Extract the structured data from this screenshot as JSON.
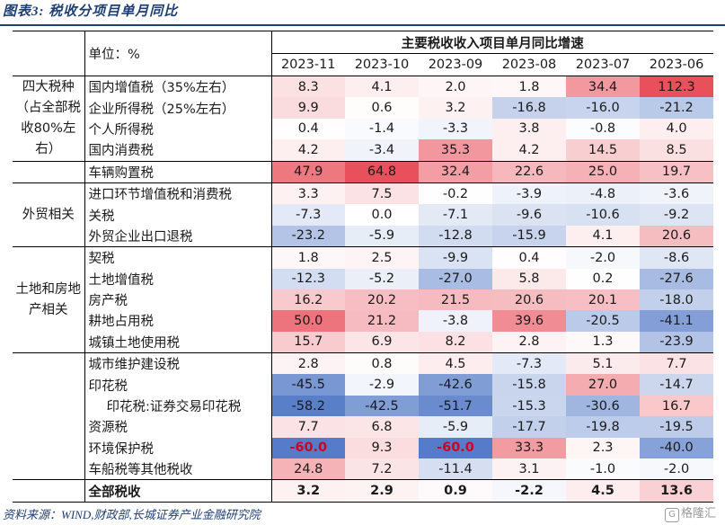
{
  "figure_title": "图表3:  税收分项目单月同比",
  "table": {
    "unit_label": "单位：%",
    "header": "主要税收收入项目单月同比增速",
    "months": [
      "2023-11",
      "2023-10",
      "2023-09",
      "2023-08",
      "2023-07",
      "2023-06"
    ],
    "groups": [
      {
        "name": "四大税种（占全部税收80%左右）",
        "rows": [
          {
            "item": "国内增值税（35%左右）",
            "values": [
              8.3,
              4.1,
              2.0,
              1.8,
              34.4,
              112.3
            ]
          },
          {
            "item": "企业所得税（25%左右）",
            "values": [
              9.9,
              0.6,
              3.2,
              -16.8,
              -16.0,
              -21.2
            ]
          },
          {
            "item": "个人所得税",
            "values": [
              0.4,
              -1.4,
              -3.3,
              3.8,
              -0.8,
              4.0
            ]
          },
          {
            "item": "国内消费税",
            "values": [
              4.2,
              -3.4,
              35.3,
              4.2,
              14.5,
              8.5
            ]
          }
        ]
      },
      {
        "name": "",
        "rows": [
          {
            "item": "车辆购置税",
            "values": [
              47.9,
              64.8,
              32.4,
              22.6,
              25.0,
              19.7
            ]
          }
        ]
      },
      {
        "name": "外贸相关",
        "rows": [
          {
            "item": "进口环节增值税和消费税",
            "values": [
              3.3,
              7.5,
              -0.2,
              -3.9,
              -4.8,
              -3.6
            ]
          },
          {
            "item": "关税",
            "values": [
              -7.3,
              0.0,
              -7.1,
              -9.6,
              -10.6,
              -9.2
            ]
          },
          {
            "item": "外贸企业出口退税",
            "values": [
              -23.2,
              -5.9,
              -12.8,
              -15.9,
              4.1,
              20.6
            ]
          }
        ]
      },
      {
        "name": "土地和房地产相关",
        "rows": [
          {
            "item": "契税",
            "values": [
              1.8,
              2.5,
              -9.9,
              0.4,
              -2.0,
              -8.6
            ]
          },
          {
            "item": "土地增值税",
            "values": [
              -12.3,
              -5.2,
              -27.0,
              5.8,
              0.2,
              -27.6
            ]
          },
          {
            "item": "房产税",
            "values": [
              16.2,
              20.2,
              21.5,
              20.6,
              20.1,
              -18.0
            ]
          },
          {
            "item": "耕地占用税",
            "values": [
              50.0,
              21.2,
              -3.8,
              39.6,
              -20.5,
              -41.1
            ]
          },
          {
            "item": "城镇土地使用税",
            "values": [
              15.7,
              6.9,
              8.2,
              2.8,
              1.3,
              -23.9
            ]
          }
        ]
      },
      {
        "name": "",
        "rows": [
          {
            "item": "城市维护建设税",
            "values": [
              2.8,
              0.8,
              4.5,
              -7.3,
              5.1,
              7.7
            ]
          },
          {
            "item": "印花税",
            "values": [
              -45.5,
              -2.9,
              -42.6,
              -15.8,
              27.0,
              -14.7
            ]
          },
          {
            "item": "印花税:证券交易印花税",
            "values": [
              -58.2,
              -42.5,
              -51.7,
              -15.3,
              -30.6,
              16.7
            ],
            "indent": true
          },
          {
            "item": "资源税",
            "values": [
              7.7,
              6.8,
              -5.9,
              -17.7,
              -19.8,
              -19.5
            ]
          },
          {
            "item": "环境保护税",
            "values": [
              -60.0,
              9.3,
              -60.0,
              33.3,
              2.3,
              -40.0
            ],
            "red": [
              0,
              2
            ]
          },
          {
            "item": "车船税等其他税收",
            "values": [
              24.8,
              7.2,
              -11.4,
              3.1,
              -1.0,
              -2.0
            ]
          }
        ]
      }
    ],
    "total": {
      "item": "全部税收",
      "values": [
        3.2,
        2.9,
        0.9,
        -2.2,
        4.5,
        13.6
      ]
    }
  },
  "source": "资料来源：WIND,财政部,长城证券产业金融研究院",
  "watermark": "格隆汇",
  "colors": {
    "positive": "#e8505b",
    "negative": "#4a72c4",
    "title": "#1f3f73",
    "emphasis": "#d1001f"
  }
}
